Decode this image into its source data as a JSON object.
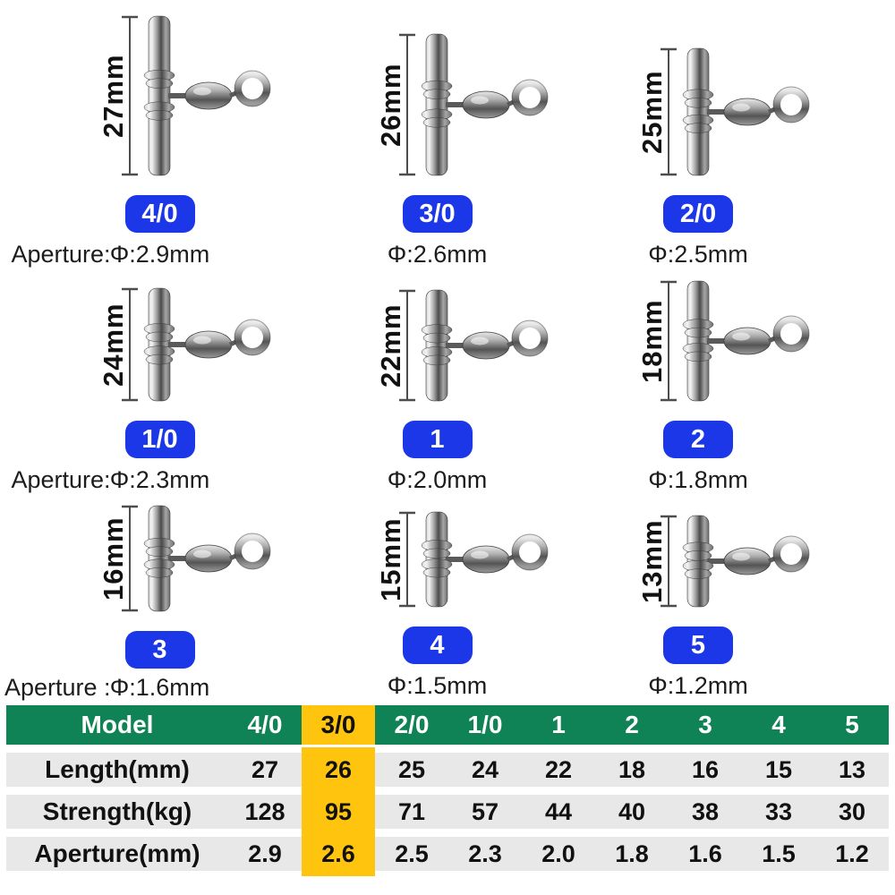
{
  "colors": {
    "badge_blue": "#1B37E8",
    "table_header_green": "#0F8355",
    "highlight_yellow": "#FFC40D",
    "row_gray": "#E8E8E8"
  },
  "products": [
    {
      "size": "27mm",
      "model": "4/0",
      "aperture_prefix": "Aperture:",
      "aperture": "Φ:2.9mm"
    },
    {
      "size": "26mm",
      "model": "3/0",
      "aperture": "Φ:2.6mm"
    },
    {
      "size": "25mm",
      "model": "2/0",
      "aperture": "Φ:2.5mm"
    },
    {
      "size": "24mm",
      "model": "1/0",
      "aperture_prefix": "Aperture:",
      "aperture": "Φ:2.3mm"
    },
    {
      "size": "22mm",
      "model": "1",
      "aperture": "Φ:2.0mm"
    },
    {
      "size": "18mm",
      "model": "2",
      "aperture": "Φ:1.8mm"
    },
    {
      "size": "16mm",
      "model": "3",
      "aperture_prefix": "Aperture :",
      "aperture": "Φ:1.6mm"
    },
    {
      "size": "15mm",
      "model": "4",
      "aperture": "Φ:1.5mm"
    },
    {
      "size": "13mm",
      "model": "5",
      "aperture": "Φ:1.2mm"
    }
  ],
  "table": {
    "header_label": "Model",
    "models": [
      "4/0",
      "3/0",
      "2/0",
      "1/0",
      "1",
      "2",
      "3",
      "4",
      "5"
    ],
    "highlighted_model": "3/0",
    "rows": [
      {
        "label": "Length(mm)",
        "values": [
          "27",
          "26",
          "25",
          "24",
          "22",
          "18",
          "16",
          "15",
          "13"
        ]
      },
      {
        "label": "Strength(kg)",
        "values": [
          "128",
          "95",
          "71",
          "57",
          "44",
          "40",
          "38",
          "33",
          "30"
        ]
      },
      {
        "label": "Aperture(mm)",
        "values": [
          "2.9",
          "2.6",
          "2.5",
          "2.3",
          "2.0",
          "1.8",
          "1.6",
          "1.5",
          "1.2"
        ]
      }
    ]
  }
}
